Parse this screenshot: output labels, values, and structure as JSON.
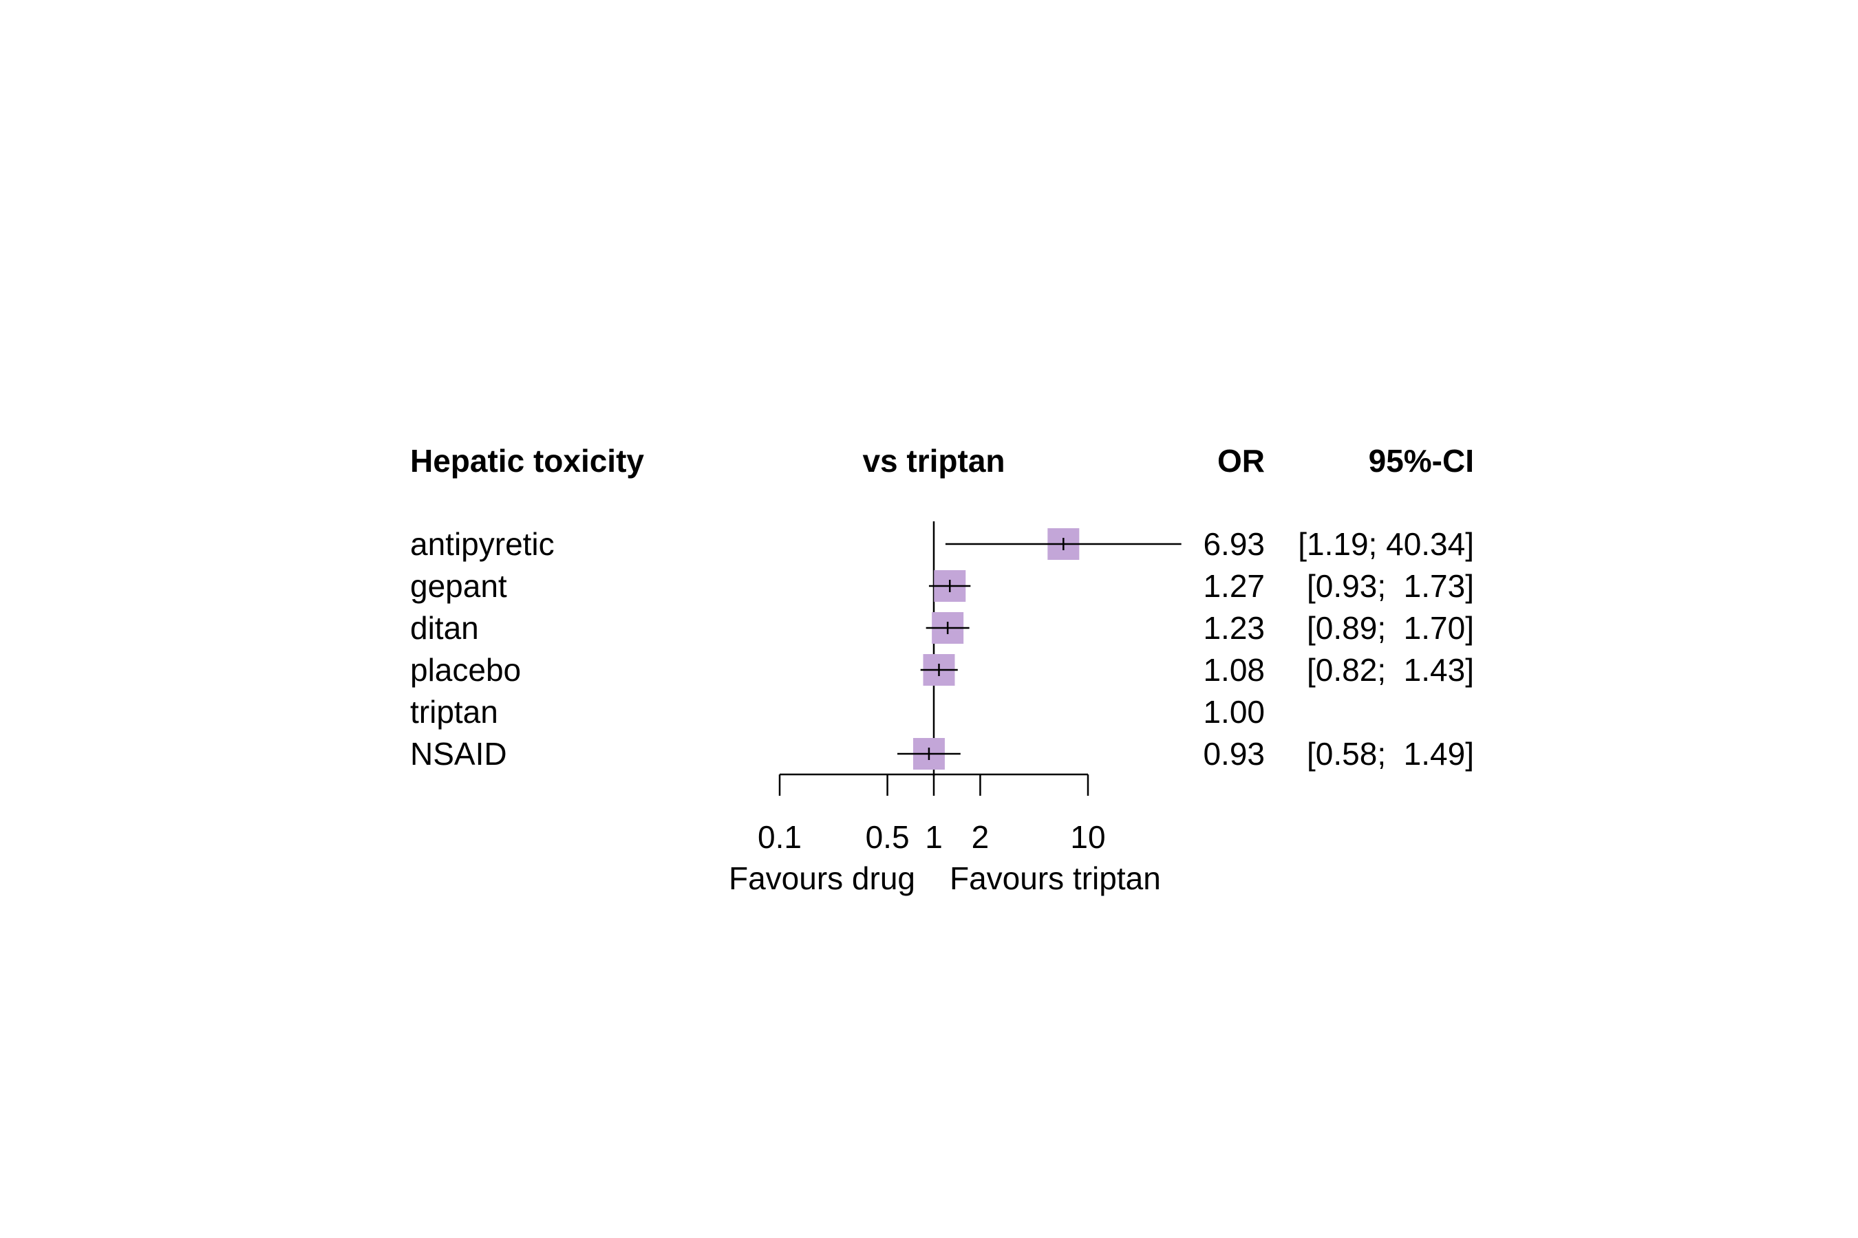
{
  "chart_data": {
    "type": "forest",
    "headers": {
      "outcome": "Hepatic toxicity",
      "comparison": "vs triptan",
      "estimate": "OR",
      "ci": "95%-CI"
    },
    "rows": [
      {
        "label": "antipyretic",
        "or": 6.93,
        "lower": 1.19,
        "upper": 40.34,
        "or_text": "6.93",
        "ci_text": "[1.19; 40.34]"
      },
      {
        "label": "gepant",
        "or": 1.27,
        "lower": 0.93,
        "upper": 1.73,
        "or_text": "1.27",
        "ci_text": "[0.93;  1.73]"
      },
      {
        "label": "ditan",
        "or": 1.23,
        "lower": 0.89,
        "upper": 1.7,
        "or_text": "1.23",
        "ci_text": "[0.89;  1.70]"
      },
      {
        "label": "placebo",
        "or": 1.08,
        "lower": 0.82,
        "upper": 1.43,
        "or_text": "1.08",
        "ci_text": "[0.82;  1.43]"
      },
      {
        "label": "triptan",
        "or": 1.0,
        "lower": null,
        "upper": null,
        "or_text": "1.00",
        "ci_text": ""
      },
      {
        "label": "NSAID",
        "or": 0.93,
        "lower": 0.58,
        "upper": 1.49,
        "or_text": "0.93",
        "ci_text": "[0.58;  1.49]"
      }
    ],
    "x_scale": "log",
    "x_ticks": [
      0.1,
      0.5,
      1,
      2,
      10
    ],
    "x_tick_labels": [
      "0.1",
      "0.5",
      "1",
      "2",
      "10"
    ],
    "reference_line": 1,
    "favours_left": "Favours drug",
    "favours_right": "Favours triptan",
    "square_color": "#c3a6d8"
  }
}
